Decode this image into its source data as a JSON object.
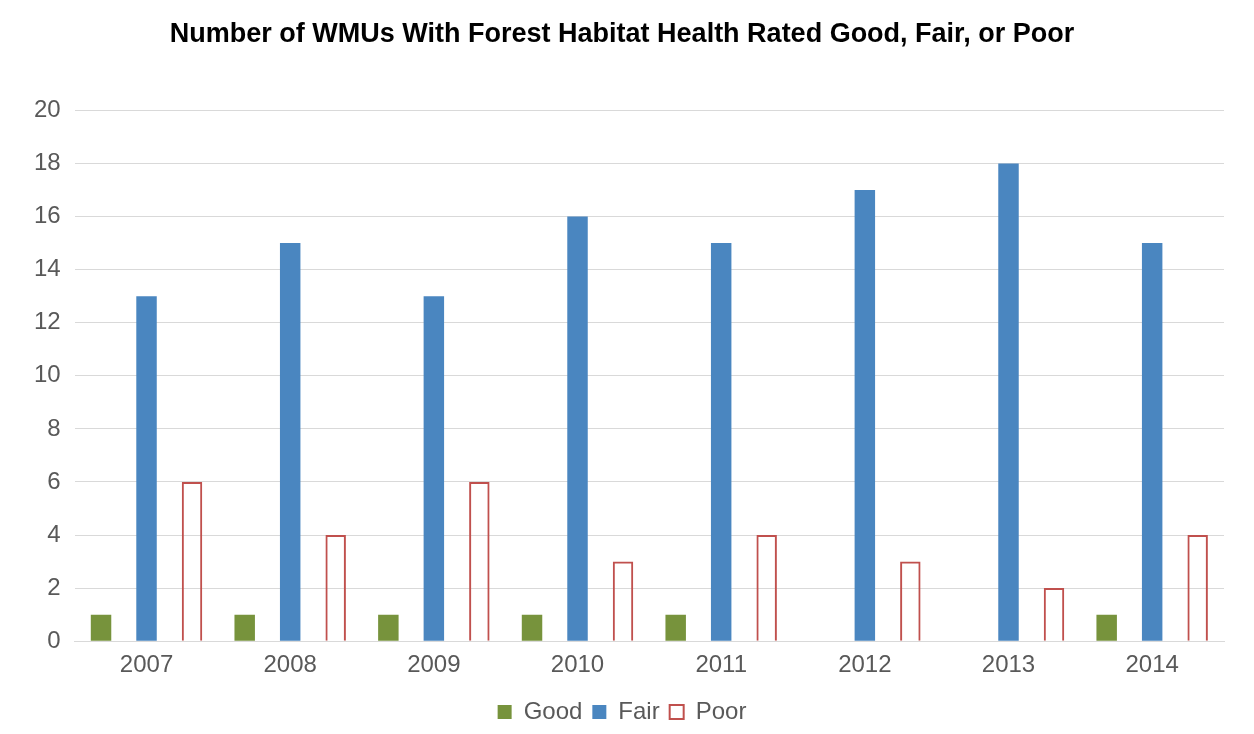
{
  "chart_data": {
    "type": "bar",
    "title": "Number of WMUs With Forest Habitat Health Rated Good, Fair, or Poor",
    "categories": [
      "2007",
      "2008",
      "2009",
      "2010",
      "2011",
      "2012",
      "2013",
      "2014"
    ],
    "series": [
      {
        "name": "Good",
        "color": "#77933c",
        "values": [
          1,
          1,
          1,
          1,
          1,
          0,
          0,
          1
        ]
      },
      {
        "name": "Fair",
        "color": "#4a86c0",
        "values": [
          13,
          15,
          13,
          16,
          15,
          17,
          18,
          15
        ]
      },
      {
        "name": "Poor",
        "color": "#c0504d",
        "values": [
          6,
          4,
          6,
          3,
          4,
          3,
          2,
          4
        ]
      }
    ],
    "ylim": [
      0,
      20
    ],
    "yticks": [
      0,
      2,
      4,
      6,
      8,
      10,
      12,
      14,
      16,
      18,
      20
    ],
    "grid": "y",
    "legend": "bottom"
  }
}
